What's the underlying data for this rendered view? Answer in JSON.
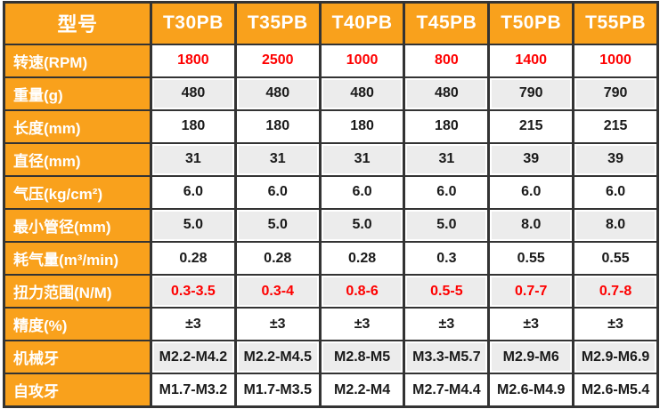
{
  "colors": {
    "header_bg": "#f9a11c",
    "header_text": "#ffffff",
    "border": "#333333",
    "row_shaded_bg": "#ececec",
    "value_text": "#1a1a1a",
    "highlight_text": "#fe0000",
    "page_bg": "#ffffff"
  },
  "chart_data": {
    "type": "table",
    "title": "",
    "columns": [
      "型号",
      "T30PB",
      "T35PB",
      "T40PB",
      "T45PB",
      "T50PB",
      "T55PB"
    ],
    "rows": [
      {
        "label": "转速(RPM)",
        "values": [
          "1800",
          "2500",
          "1000",
          "800",
          "1400",
          "1000"
        ],
        "highlight": true
      },
      {
        "label": "重量(g)",
        "values": [
          "480",
          "480",
          "480",
          "480",
          "790",
          "790"
        ],
        "highlight": false
      },
      {
        "label": "长度(mm)",
        "values": [
          "180",
          "180",
          "180",
          "180",
          "215",
          "215"
        ],
        "highlight": false
      },
      {
        "label": "直径(mm)",
        "values": [
          "31",
          "31",
          "31",
          "31",
          "39",
          "39"
        ],
        "highlight": false
      },
      {
        "label": "气压(kg/cm²)",
        "values": [
          "6.0",
          "6.0",
          "6.0",
          "6.0",
          "6.0",
          "6.0"
        ],
        "highlight": false
      },
      {
        "label": "最小管径(mm)",
        "values": [
          "5.0",
          "5.0",
          "5.0",
          "5.0",
          "8.0",
          "8.0"
        ],
        "highlight": false
      },
      {
        "label": "耗气量(m³/min)",
        "values": [
          "0.28",
          "0.28",
          "0.28",
          "0.3",
          "0.55",
          "0.55"
        ],
        "highlight": false
      },
      {
        "label": "扭力范围(N/M)",
        "values": [
          "0.3-3.5",
          "0.3-4",
          "0.8-6",
          "0.5-5",
          "0.7-7",
          "0.7-8"
        ],
        "highlight": true
      },
      {
        "label": "精度(%)",
        "values": [
          "±3",
          "±3",
          "±3",
          "±3",
          "±3",
          "±3"
        ],
        "highlight": false
      },
      {
        "label": "机械牙",
        "values": [
          "M2.2-M4.2",
          "M2.2-M4.5",
          "M2.8-M5",
          "M3.3-M5.7",
          "M2.9-M6",
          "M2.9-M6.9"
        ],
        "highlight": false
      },
      {
        "label": "自攻牙",
        "values": [
          "M1.7-M3.2",
          "M1.7-M3.5",
          "M2.2-M4",
          "M2.7-M4.4",
          "M2.6-M4.9",
          "M2.6-M5.4"
        ],
        "highlight": false
      }
    ]
  }
}
